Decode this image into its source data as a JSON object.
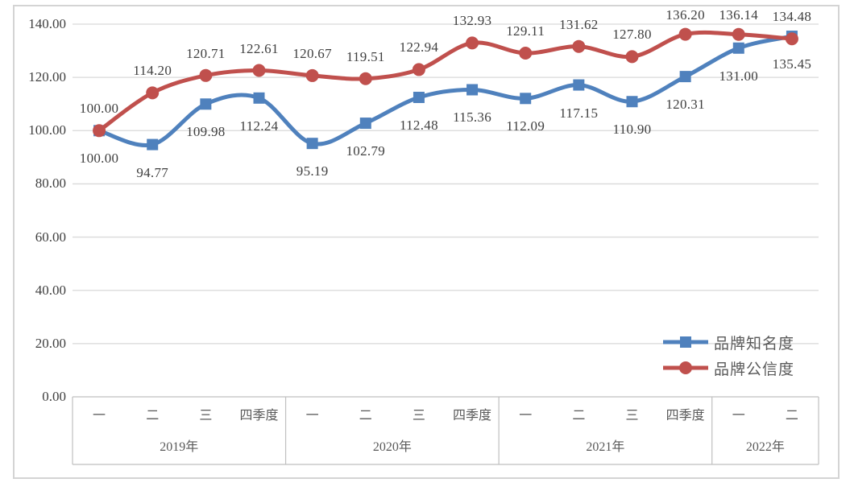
{
  "chart_data": {
    "type": "line",
    "title": "",
    "smooth": true,
    "grid": true,
    "legend_position": "right-middle",
    "x_quarter_labels": [
      "一",
      "二",
      "三",
      "四季度",
      "一",
      "二",
      "三",
      "四季度",
      "一",
      "二",
      "三",
      "四季度",
      "一",
      "二"
    ],
    "x_year_groups": [
      {
        "label": "2019年",
        "count": 4
      },
      {
        "label": "2020年",
        "count": 4
      },
      {
        "label": "2021年",
        "count": 4
      },
      {
        "label": "2022年",
        "count": 2
      }
    ],
    "ylim": [
      0,
      140
    ],
    "y_ticks": [
      0,
      20,
      40,
      60,
      80,
      100,
      120,
      140
    ],
    "y_tick_labels": [
      "0.00",
      "20.00",
      "40.00",
      "60.00",
      "80.00",
      "100.00",
      "120.00",
      "140.00"
    ],
    "data_labels_shown": true,
    "data_label_format": "0.00",
    "series": [
      {
        "name": "品牌知名度",
        "color": "#4F81BD",
        "marker": "square",
        "label_position": "below",
        "values": [
          100.0,
          94.77,
          109.98,
          112.24,
          95.19,
          102.79,
          112.48,
          115.36,
          112.09,
          117.15,
          110.9,
          120.31,
          131.0,
          135.45
        ]
      },
      {
        "name": "品牌公信度",
        "color": "#C0504D",
        "marker": "circle",
        "label_position": "above",
        "values": [
          100.0,
          114.2,
          120.71,
          122.61,
          120.67,
          119.51,
          122.94,
          132.93,
          129.11,
          131.62,
          127.8,
          136.2,
          136.14,
          134.48
        ]
      }
    ]
  },
  "colors": {
    "grid": "#D9D9D9",
    "axis_box_border": "#BFBFBF",
    "frame_border": "#D4D4D4",
    "data_label_text": "#3F3F3F",
    "axis_text": "#595959"
  }
}
